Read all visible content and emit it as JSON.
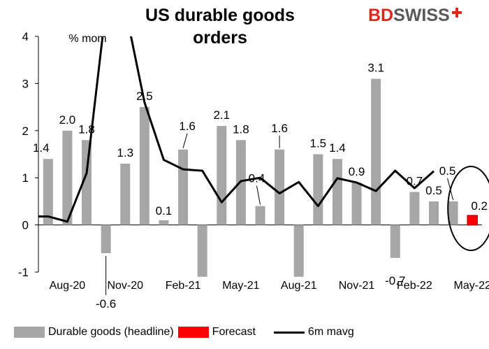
{
  "title": "US durable goods orders",
  "brand": {
    "part1": "BD",
    "part2": "SWISS"
  },
  "unit_label": "% mom",
  "legend": {
    "headline": "Durable goods (headline)",
    "forecast": "Forecast",
    "mavg": "6m mavg"
  },
  "colors": {
    "bar": "#a6a6a6",
    "forecast": "#ff0000",
    "forecast_border": "#c00000",
    "line": "#000000",
    "brand_red": "#e1251b",
    "brand_grey": "#58595b"
  },
  "chart_data": {
    "type": "bar",
    "title": "US durable goods orders",
    "ylabel": "% mom",
    "ylim": [
      -1,
      4
    ],
    "yticks": [
      "-1",
      "0",
      "1",
      "2",
      "3",
      "4"
    ],
    "categories": [
      "Jul-20",
      "Aug-20",
      "Sep-20",
      "Oct-20",
      "Nov-20",
      "Dec-20",
      "Jan-21",
      "Feb-21",
      "Mar-21",
      "Apr-21",
      "May-21",
      "Jun-21",
      "Jul-21",
      "Aug-21",
      "Sep-21",
      "Oct-21",
      "Nov-21",
      "Dec-21",
      "Jan-22",
      "Feb-22",
      "Mar-22",
      "Apr-22",
      "May-22"
    ],
    "xtick_labels": [
      "Aug-20",
      "Nov-20",
      "Feb-21",
      "May-21",
      "Aug-21",
      "Nov-21",
      "Feb-22",
      "May-22"
    ],
    "series": [
      {
        "name": "Durable goods (headline)",
        "type": "bar",
        "values": [
          1.4,
          2.0,
          1.8,
          -0.6,
          1.3,
          2.5,
          0.1,
          1.6,
          -1.1,
          2.1,
          1.8,
          0.4,
          1.6,
          -1.1,
          1.5,
          1.4,
          0.9,
          3.1,
          -0.7,
          0.7,
          0.5,
          0.5,
          null
        ],
        "labels": [
          "1.4",
          "2.0",
          "1.8",
          "-0.6",
          "1.3",
          "2.5",
          "0.1",
          "1.6",
          "",
          "2.1",
          "1.8",
          "0.4",
          "1.6",
          "",
          "1.5",
          "1.4",
          "0.9",
          "3.1",
          "-0.7",
          "0.7",
          "0.5",
          "0.5",
          ""
        ]
      },
      {
        "name": "Forecast",
        "type": "bar",
        "values": [
          null,
          null,
          null,
          null,
          null,
          null,
          null,
          null,
          null,
          null,
          null,
          null,
          null,
          null,
          null,
          null,
          null,
          null,
          null,
          null,
          null,
          null,
          0.2
        ],
        "labels": [
          "",
          "",
          "",
          "",
          "",
          "",
          "",
          "",
          "",
          "",
          "",
          "",
          "",
          "",
          "",
          "",
          "",
          "",
          "",
          "",
          "",
          "",
          "0.2"
        ]
      },
      {
        "name": "6m mavg",
        "type": "line",
        "values": [
          0.18,
          0.07,
          1.1,
          4.6,
          4.6,
          2.6,
          1.38,
          1.18,
          1.15,
          0.48,
          0.93,
          1.0,
          0.67,
          0.91,
          0.4,
          0.99,
          0.9,
          0.72,
          1.15,
          0.78,
          1.14,
          null,
          null
        ]
      }
    ]
  }
}
